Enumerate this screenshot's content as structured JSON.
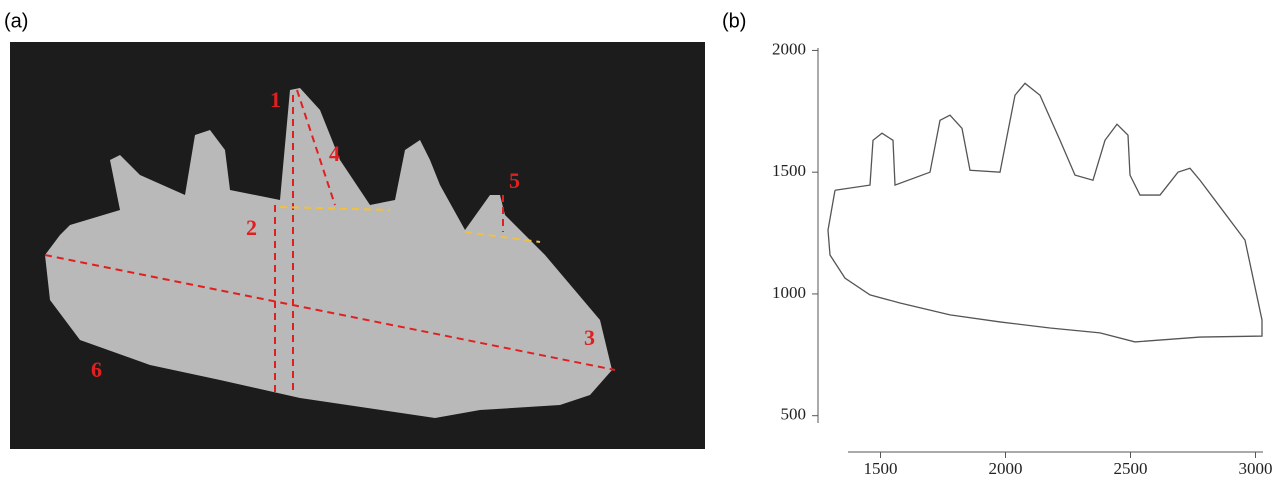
{
  "panel_a": {
    "label": "(a)",
    "annotations": [
      "1",
      "2",
      "3",
      "4",
      "5",
      "6"
    ]
  },
  "chart_data": {
    "type": "line",
    "label": "(b)",
    "x": [
      1318,
      1458,
      1470,
      1506,
      1550,
      1558,
      1698,
      1738,
      1778,
      1826,
      1858,
      1978,
      2038,
      2078,
      2138,
      2218,
      2278,
      2350,
      2398,
      2446,
      2490,
      2498,
      2538,
      2618,
      2690,
      2738,
      2778,
      2838,
      2958,
      3026,
      3026,
      2778,
      2518,
      2378,
      2178,
      1978,
      1778,
      1578,
      1458,
      1358,
      1298,
      1290,
      1318
    ],
    "y": [
      1426,
      1447,
      1631,
      1660,
      1631,
      1447,
      1500,
      1713,
      1734,
      1680,
      1508,
      1500,
      1816,
      1865,
      1816,
      1631,
      1488,
      1467,
      1631,
      1697,
      1652,
      1488,
      1406,
      1406,
      1500,
      1516,
      1467,
      1385,
      1221,
      893,
      827,
      823,
      803,
      840,
      860,
      885,
      914,
      963,
      996,
      1065,
      1160,
      1262,
      1426
    ],
    "color": "#555555",
    "xlim": [
      1370,
      3030
    ],
    "ylim": [
      470,
      2010
    ],
    "xticks": [
      1500,
      2000,
      2500,
      3000
    ],
    "yticks": [
      500,
      1000,
      1500,
      2000
    ]
  }
}
